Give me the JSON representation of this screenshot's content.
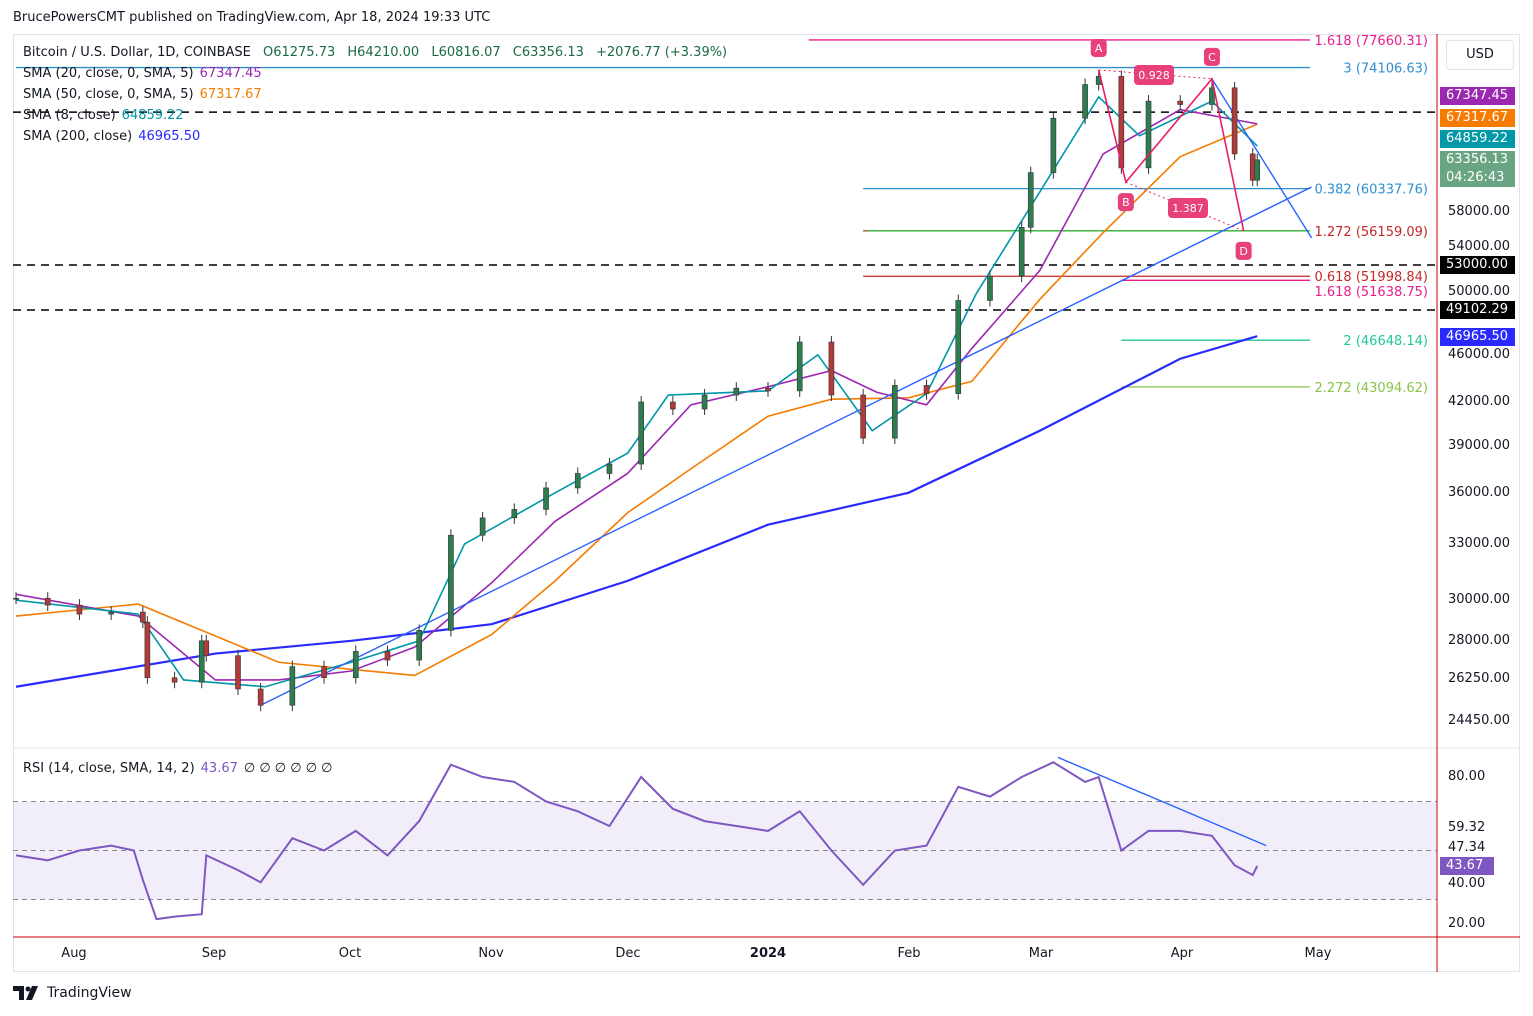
{
  "publisher": "BrucePowersCMT published on TradingView.com, Apr 18, 2024 19:33 UTC",
  "header": {
    "symbol": "Bitcoin / U.S. Dollar, 1D, COINBASE",
    "open": "O61275.73",
    "high": "H64210.00",
    "low": "L60816.07",
    "close": "C63356.13",
    "change": "+2076.77 (+3.39%)"
  },
  "indicators": [
    {
      "label": "SMA (20, close, 0, SMA, 5)",
      "value": "67347.45",
      "color": "#9c27b0"
    },
    {
      "label": "SMA (50, close, 0, SMA, 5)",
      "value": "67317.67",
      "color": "#f57c00"
    },
    {
      "label": "SMA (8, close)",
      "value": "64859.22",
      "color": "#0097a7"
    },
    {
      "label": "SMA (200, close)",
      "value": "46965.50",
      "color": "#2a2aff"
    }
  ],
  "rsi_legend": {
    "label": "RSI (14, close, SMA, 14, 2)",
    "value": "43.67",
    "extras": "∅ ∅ ∅ ∅ ∅ ∅"
  },
  "currency": "USD",
  "price_tags": [
    {
      "value": "67347.45",
      "color": "#9c27b0"
    },
    {
      "value": "67317.67",
      "color": "#f57c00"
    },
    {
      "value": "64859.22",
      "color": "#0097a7"
    },
    {
      "value": "63356.13",
      "sub": "04:26:43",
      "color": "#6aa583"
    },
    {
      "value": "53000.00",
      "color": "#000000"
    },
    {
      "value": "49102.29",
      "color": "#000000"
    },
    {
      "value": "46965.50",
      "color": "#2a2aff"
    }
  ],
  "chart_data": [
    {
      "type": "candlestick",
      "scale": "log",
      "y_ticks": [
        "58000.00",
        "54000.00",
        "50000.00",
        "46000.00",
        "42000.00",
        "39000.00",
        "36000.00",
        "33000.00",
        "30000.00",
        "28000.00",
        "26250.00",
        "24450.00"
      ],
      "x_ticks": [
        "Aug",
        "Sep",
        "Oct",
        "Nov",
        "Dec",
        "2024",
        "Feb",
        "Mar",
        "Apr",
        "May"
      ],
      "close": [
        [
          "2023-07-19",
          30100
        ],
        [
          "2023-07-26",
          29750
        ],
        [
          "2023-08-02",
          29300
        ],
        [
          "2023-08-09",
          29400
        ],
        [
          "2023-08-16",
          28900
        ],
        [
          "2023-08-17",
          26300
        ],
        [
          "2023-08-23",
          26100
        ],
        [
          "2023-08-29",
          28000
        ],
        [
          "2023-08-30",
          27300
        ],
        [
          "2023-09-06",
          25800
        ],
        [
          "2023-09-11",
          25100
        ],
        [
          "2023-09-18",
          26800
        ],
        [
          "2023-09-25",
          26300
        ],
        [
          "2023-10-02",
          27500
        ],
        [
          "2023-10-09",
          27100
        ],
        [
          "2023-10-16",
          28500
        ],
        [
          "2023-10-23",
          33500
        ],
        [
          "2023-10-30",
          34500
        ],
        [
          "2023-11-06",
          35000
        ],
        [
          "2023-11-13",
          36300
        ],
        [
          "2023-11-20",
          37200
        ],
        [
          "2023-11-27",
          37800
        ],
        [
          "2023-12-04",
          42000
        ],
        [
          "2023-12-11",
          41500
        ],
        [
          "2023-12-18",
          42500
        ],
        [
          "2023-12-25",
          43000
        ],
        [
          "2024-01-01",
          42800
        ],
        [
          "2024-01-08",
          46500
        ],
        [
          "2024-01-15",
          42500
        ],
        [
          "2024-01-22",
          39500
        ],
        [
          "2024-01-29",
          43200
        ],
        [
          "2024-02-05",
          42600
        ],
        [
          "2024-02-12",
          49900
        ],
        [
          "2024-02-19",
          52000
        ],
        [
          "2024-02-26",
          56500
        ],
        [
          "2024-02-28",
          62000
        ],
        [
          "2024-03-04",
          68000
        ],
        [
          "2024-03-11",
          72000
        ],
        [
          "2024-03-14",
          73000
        ],
        [
          "2024-03-19",
          62500
        ],
        [
          "2024-03-25",
          70000
        ],
        [
          "2024-04-01",
          69600
        ],
        [
          "2024-04-08",
          71600
        ],
        [
          "2024-04-13",
          64000
        ],
        [
          "2024-04-17",
          61200
        ],
        [
          "2024-04-18",
          63356.13
        ]
      ],
      "sma": [
        {
          "name": "SMA 200",
          "color": "#2a2aff",
          "points": [
            [
              "2023-07-19",
              25900
            ],
            [
              "2023-09-01",
              27400
            ],
            [
              "2023-10-01",
              28000
            ],
            [
              "2023-11-01",
              28800
            ],
            [
              "2023-12-01",
              31000
            ],
            [
              "2024-01-01",
              34100
            ],
            [
              "2024-02-01",
              36000
            ],
            [
              "2024-03-01",
              40000
            ],
            [
              "2024-04-01",
              45200
            ],
            [
              "2024-04-18",
              46965.5
            ]
          ]
        },
        {
          "name": "SMA 50",
          "color": "#f57c00",
          "points": [
            [
              "2023-07-19",
              29200
            ],
            [
              "2023-08-15",
              29800
            ],
            [
              "2023-09-15",
              27000
            ],
            [
              "2023-10-15",
              26400
            ],
            [
              "2023-11-01",
              28300
            ],
            [
              "2023-11-15",
              31000
            ],
            [
              "2023-12-01",
              34800
            ],
            [
              "2023-12-15",
              37500
            ],
            [
              "2024-01-01",
              41000
            ],
            [
              "2024-01-15",
              42200
            ],
            [
              "2024-02-01",
              42300
            ],
            [
              "2024-02-15",
              43500
            ],
            [
              "2024-03-01",
              50000
            ],
            [
              "2024-03-15",
              56000
            ],
            [
              "2024-04-01",
              63700
            ],
            [
              "2024-04-18",
              67317.67
            ]
          ]
        },
        {
          "name": "SMA 20",
          "color": "#9c27b0",
          "points": [
            [
              "2023-07-19",
              30300
            ],
            [
              "2023-08-15",
              29200
            ],
            [
              "2023-09-01",
              26200
            ],
            [
              "2023-09-15",
              26200
            ],
            [
              "2023-10-01",
              26600
            ],
            [
              "2023-10-15",
              27700
            ],
            [
              "2023-11-01",
              30900
            ],
            [
              "2023-11-15",
              34300
            ],
            [
              "2023-12-01",
              37200
            ],
            [
              "2023-12-15",
              41800
            ],
            [
              "2024-01-01",
              43100
            ],
            [
              "2024-01-15",
              44300
            ],
            [
              "2024-01-25",
              42700
            ],
            [
              "2024-02-05",
              41800
            ],
            [
              "2024-02-15",
              46000
            ],
            [
              "2024-03-01",
              52500
            ],
            [
              "2024-03-15",
              64000
            ],
            [
              "2024-04-01",
              69000
            ],
            [
              "2024-04-18",
              67347.45
            ]
          ]
        },
        {
          "name": "SMA 8",
          "color": "#0097a7",
          "points": [
            [
              "2023-07-19",
              30000
            ],
            [
              "2023-08-15",
              29300
            ],
            [
              "2023-08-25",
              26200
            ],
            [
              "2023-09-12",
              25900
            ],
            [
              "2023-10-01",
              27000
            ],
            [
              "2023-10-16",
              28000
            ],
            [
              "2023-10-26",
              33000
            ],
            [
              "2023-11-15",
              36000
            ],
            [
              "2023-12-01",
              38500
            ],
            [
              "2023-12-10",
              42500
            ],
            [
              "2024-01-01",
              42800
            ],
            [
              "2024-01-12",
              45500
            ],
            [
              "2024-01-24",
              40000
            ],
            [
              "2024-02-05",
              42600
            ],
            [
              "2024-02-16",
              50500
            ],
            [
              "2024-03-01",
              60000
            ],
            [
              "2024-03-14",
              70500
            ],
            [
              "2024-03-23",
              66000
            ],
            [
              "2024-04-08",
              70000
            ],
            [
              "2024-04-18",
              64859.22
            ]
          ]
        }
      ],
      "fib_levels": [
        {
          "label": "1.618 (77660.31)",
          "price": 77660.31,
          "color": "#e91e8c",
          "from": "2024-01-10"
        },
        {
          "label": "3 (74106.63)",
          "price": 74106.63,
          "color": "#2f8fd0",
          "from": "2023-07-19"
        },
        {
          "label": "0.382 (60337.76)",
          "price": 60337.76,
          "color": "#2f8fd0",
          "from": "2024-01-22"
        },
        {
          "label": "1.272 (56159.09)",
          "price": 56159.09,
          "color": "#c62828",
          "from": "2024-01-22"
        },
        {
          "label": "0.618 (51998.84)",
          "price": 51998.84,
          "color": "#c62828",
          "from": "2024-01-22"
        },
        {
          "label": "1.618 (51638.75)",
          "price": 51638.75,
          "color": "#e91e8c",
          "from": "2024-03-19"
        },
        {
          "label": "2 (46648.14)",
          "price": 46648.14,
          "color": "#22c997",
          "from": "2024-03-19"
        },
        {
          "label": "2.272 (43094.62)",
          "price": 43094.62,
          "color": "#8bc34a",
          "from": "2024-03-19"
        }
      ],
      "horizontal_dashed": [
        68700,
        53000,
        49102.29
      ],
      "pattern": {
        "points": [
          {
            "label": "A",
            "date": "2024-03-14",
            "price": 73800
          },
          {
            "label": "B",
            "date": "2024-03-20",
            "price": 61000
          },
          {
            "label": "C",
            "date": "2024-04-08",
            "price": 72700
          },
          {
            "label": "D",
            "date": "2024-04-15",
            "price": 56159
          }
        ],
        "ratios": [
          "0.928",
          "1.387"
        ]
      },
      "trendlines": [
        {
          "from": [
            "2023-09-11",
            25100
          ],
          "to": [
            "2024-04-30",
            60500
          ],
          "color": "#2962ff"
        },
        {
          "from": [
            "2024-04-08",
            72700
          ],
          "to": [
            "2024-04-30",
            55500
          ],
          "color": "#2962ff"
        }
      ]
    },
    {
      "type": "line",
      "name": "RSI",
      "y_ticks": [
        "80.00",
        "59.32",
        "47.34",
        "40.00",
        "20.00"
      ],
      "bands": [
        70,
        50,
        30
      ],
      "values": [
        [
          "2023-07-19",
          48
        ],
        [
          "2023-07-26",
          46
        ],
        [
          "2023-08-02",
          50
        ],
        [
          "2023-08-09",
          52
        ],
        [
          "2023-08-14",
          50
        ],
        [
          "2023-08-16",
          38
        ],
        [
          "2023-08-19",
          22
        ],
        [
          "2023-08-23",
          23
        ],
        [
          "2023-08-29",
          24
        ],
        [
          "2023-08-30",
          48
        ],
        [
          "2023-09-06",
          42
        ],
        [
          "2023-09-11",
          37
        ],
        [
          "2023-09-18",
          55
        ],
        [
          "2023-09-25",
          50
        ],
        [
          "2023-10-02",
          58
        ],
        [
          "2023-10-09",
          48
        ],
        [
          "2023-10-16",
          62
        ],
        [
          "2023-10-23",
          85
        ],
        [
          "2023-10-30",
          80
        ],
        [
          "2023-11-06",
          78
        ],
        [
          "2023-11-13",
          70
        ],
        [
          "2023-11-20",
          66
        ],
        [
          "2023-11-27",
          60
        ],
        [
          "2023-12-04",
          80
        ],
        [
          "2023-12-11",
          67
        ],
        [
          "2023-12-18",
          62
        ],
        [
          "2023-12-25",
          60
        ],
        [
          "2024-01-01",
          58
        ],
        [
          "2024-01-08",
          66
        ],
        [
          "2024-01-15",
          50
        ],
        [
          "2024-01-22",
          36
        ],
        [
          "2024-01-29",
          50
        ],
        [
          "2024-02-05",
          52
        ],
        [
          "2024-02-12",
          76
        ],
        [
          "2024-02-19",
          72
        ],
        [
          "2024-02-26",
          80
        ],
        [
          "2024-03-04",
          86
        ],
        [
          "2024-03-11",
          78
        ],
        [
          "2024-03-14",
          80
        ],
        [
          "2024-03-19",
          50
        ],
        [
          "2024-03-25",
          58
        ],
        [
          "2024-04-01",
          58
        ],
        [
          "2024-04-08",
          56
        ],
        [
          "2024-04-13",
          44
        ],
        [
          "2024-04-17",
          40
        ],
        [
          "2024-04-18",
          43.67
        ]
      ],
      "trendline": {
        "from": [
          "2024-03-05",
          88
        ],
        "to": [
          "2024-04-20",
          52
        ]
      }
    }
  ],
  "footer": {
    "brand": "TradingView"
  }
}
